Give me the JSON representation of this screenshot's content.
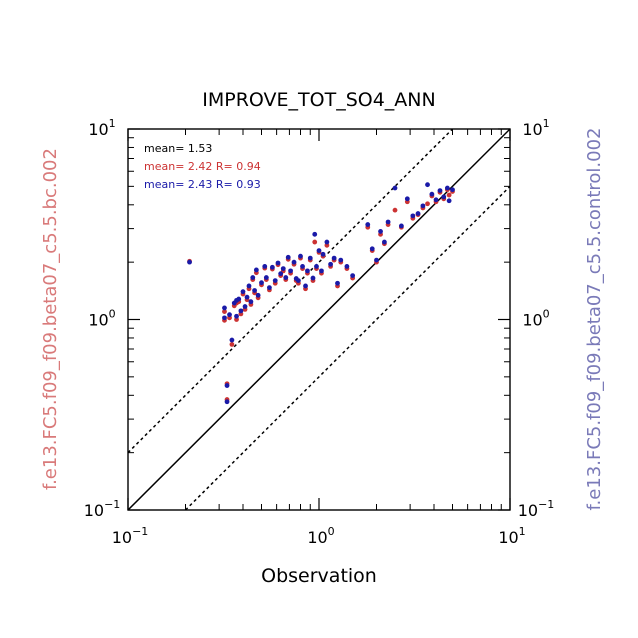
{
  "chart_data": {
    "type": "scatter",
    "title": "IMPROVE_TOT_SO4_ANN",
    "xlabel": "Observation",
    "ylabel_left": "f.e13.FC5.f09_f09.beta07_c5.5.bc.002",
    "ylabel_right": "f.e13.FC5.f09_f09.beta07_c5.5.control.002",
    "x_scale": "log",
    "y_scale": "log",
    "xlim": [
      0.1,
      10
    ],
    "ylim": [
      0.1,
      10
    ],
    "grid": false,
    "ticks": [
      {
        "value": 0.1,
        "base": "10",
        "exp": "−1"
      },
      {
        "value": 1,
        "base": "10",
        "exp": "0"
      },
      {
        "value": 10,
        "base": "10",
        "exp": "1"
      }
    ],
    "reference_lines": [
      {
        "slope_factor": 1,
        "style": "solid"
      },
      {
        "slope_factor": 2,
        "style": "dotted"
      },
      {
        "slope_factor": 0.5,
        "style": "dotted"
      }
    ],
    "stats": [
      {
        "text": "mean= 1.53",
        "color": "#000000"
      },
      {
        "text": "mean= 2.42 R= 0.94",
        "color": "#cc3333"
      },
      {
        "text": "mean= 2.43 R= 0.93",
        "color": "#1a1aa8"
      }
    ],
    "series_colors": [
      "#cc3333",
      "#1a1aa8"
    ],
    "series": [
      {
        "color": "#cc3333",
        "points": [
          [
            0.21,
            2.02
          ],
          [
            0.32,
            0.99
          ],
          [
            0.32,
            1.1
          ],
          [
            0.33,
            0.46
          ],
          [
            0.33,
            0.38
          ],
          [
            0.34,
            1.02
          ],
          [
            0.35,
            0.74
          ],
          [
            0.36,
            1.18
          ],
          [
            0.37,
            1.22
          ],
          [
            0.37,
            1.0
          ],
          [
            0.38,
            1.24
          ],
          [
            0.39,
            1.07
          ],
          [
            0.4,
            1.36
          ],
          [
            0.41,
            1.13
          ],
          [
            0.42,
            1.27
          ],
          [
            0.43,
            1.45
          ],
          [
            0.44,
            1.2
          ],
          [
            0.45,
            1.62
          ],
          [
            0.46,
            1.38
          ],
          [
            0.47,
            1.76
          ],
          [
            0.48,
            1.3
          ],
          [
            0.5,
            1.52
          ],
          [
            0.52,
            1.86
          ],
          [
            0.53,
            1.62
          ],
          [
            0.55,
            1.43
          ],
          [
            0.57,
            1.84
          ],
          [
            0.59,
            1.55
          ],
          [
            0.61,
            1.94
          ],
          [
            0.63,
            1.7
          ],
          [
            0.65,
            1.8
          ],
          [
            0.67,
            1.62
          ],
          [
            0.69,
            2.07
          ],
          [
            0.71,
            1.75
          ],
          [
            0.74,
            1.95
          ],
          [
            0.76,
            1.6
          ],
          [
            0.78,
            1.55
          ],
          [
            0.8,
            2.1
          ],
          [
            0.82,
            1.85
          ],
          [
            0.85,
            1.45
          ],
          [
            0.87,
            1.75
          ],
          [
            0.9,
            2.05
          ],
          [
            0.93,
            1.6
          ],
          [
            0.95,
            2.55
          ],
          [
            0.97,
            1.85
          ],
          [
            1.0,
            2.25
          ],
          [
            1.03,
            1.75
          ],
          [
            1.05,
            2.15
          ],
          [
            1.1,
            2.45
          ],
          [
            1.15,
            1.9
          ],
          [
            1.2,
            2.05
          ],
          [
            1.25,
            1.5
          ],
          [
            1.3,
            2.0
          ],
          [
            1.4,
            1.85
          ],
          [
            1.5,
            1.65
          ],
          [
            1.8,
            3.05
          ],
          [
            1.9,
            2.3
          ],
          [
            2.0,
            2.0
          ],
          [
            2.1,
            2.8
          ],
          [
            2.2,
            2.5
          ],
          [
            2.3,
            3.15
          ],
          [
            2.5,
            3.75
          ],
          [
            2.7,
            3.05
          ],
          [
            2.9,
            4.15
          ],
          [
            3.1,
            3.4
          ],
          [
            3.3,
            3.55
          ],
          [
            3.5,
            3.85
          ],
          [
            3.7,
            4.05
          ],
          [
            3.9,
            4.45
          ],
          [
            4.1,
            4.15
          ],
          [
            4.3,
            4.65
          ],
          [
            4.5,
            4.3
          ],
          [
            4.7,
            4.8
          ],
          [
            4.8,
            4.5
          ],
          [
            5.0,
            4.7
          ]
        ]
      },
      {
        "color": "#1a1aa8",
        "points": [
          [
            0.21,
            2.0
          ],
          [
            0.32,
            1.02
          ],
          [
            0.32,
            1.15
          ],
          [
            0.33,
            0.45
          ],
          [
            0.33,
            0.37
          ],
          [
            0.34,
            1.06
          ],
          [
            0.35,
            0.78
          ],
          [
            0.36,
            1.22
          ],
          [
            0.37,
            1.26
          ],
          [
            0.37,
            1.04
          ],
          [
            0.38,
            1.28
          ],
          [
            0.39,
            1.11
          ],
          [
            0.4,
            1.4
          ],
          [
            0.41,
            1.17
          ],
          [
            0.42,
            1.31
          ],
          [
            0.43,
            1.5
          ],
          [
            0.44,
            1.24
          ],
          [
            0.45,
            1.66
          ],
          [
            0.46,
            1.42
          ],
          [
            0.47,
            1.82
          ],
          [
            0.48,
            1.34
          ],
          [
            0.5,
            1.56
          ],
          [
            0.52,
            1.9
          ],
          [
            0.53,
            1.66
          ],
          [
            0.55,
            1.47
          ],
          [
            0.57,
            1.88
          ],
          [
            0.59,
            1.6
          ],
          [
            0.61,
            1.98
          ],
          [
            0.63,
            1.74
          ],
          [
            0.65,
            1.85
          ],
          [
            0.67,
            1.66
          ],
          [
            0.69,
            2.12
          ],
          [
            0.71,
            1.8
          ],
          [
            0.74,
            2.0
          ],
          [
            0.76,
            1.64
          ],
          [
            0.78,
            1.6
          ],
          [
            0.8,
            2.15
          ],
          [
            0.82,
            1.9
          ],
          [
            0.85,
            1.5
          ],
          [
            0.87,
            1.8
          ],
          [
            0.9,
            2.1
          ],
          [
            0.93,
            1.65
          ],
          [
            0.95,
            2.8
          ],
          [
            0.97,
            1.9
          ],
          [
            1.0,
            2.3
          ],
          [
            1.03,
            1.8
          ],
          [
            1.05,
            2.2
          ],
          [
            1.1,
            2.55
          ],
          [
            1.15,
            1.95
          ],
          [
            1.2,
            2.1
          ],
          [
            1.25,
            1.55
          ],
          [
            1.3,
            2.05
          ],
          [
            1.4,
            1.9
          ],
          [
            1.5,
            1.7
          ],
          [
            1.8,
            3.15
          ],
          [
            1.9,
            2.35
          ],
          [
            2.0,
            2.05
          ],
          [
            2.1,
            2.9
          ],
          [
            2.2,
            2.55
          ],
          [
            2.3,
            3.25
          ],
          [
            2.5,
            4.9
          ],
          [
            2.7,
            3.1
          ],
          [
            2.9,
            4.3
          ],
          [
            3.1,
            3.5
          ],
          [
            3.3,
            3.6
          ],
          [
            3.5,
            3.95
          ],
          [
            3.7,
            5.1
          ],
          [
            3.9,
            4.55
          ],
          [
            4.1,
            4.25
          ],
          [
            4.3,
            4.75
          ],
          [
            4.5,
            4.4
          ],
          [
            4.7,
            4.9
          ],
          [
            4.8,
            4.2
          ],
          [
            5.0,
            4.8
          ]
        ]
      }
    ]
  }
}
